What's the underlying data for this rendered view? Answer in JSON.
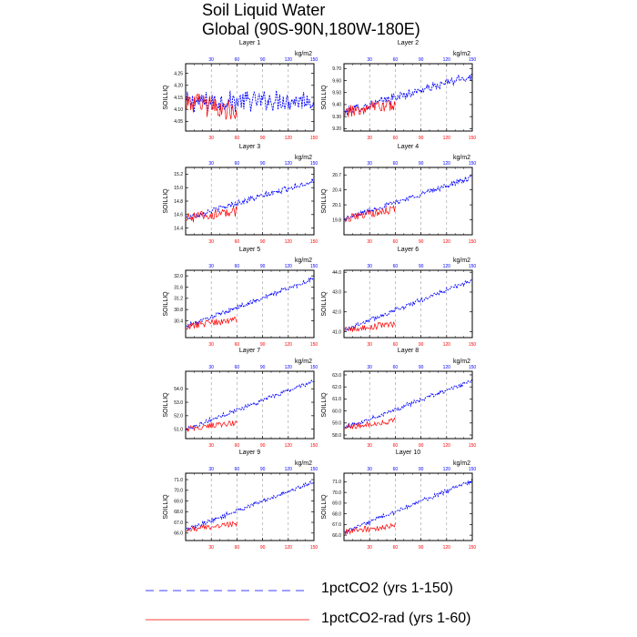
{
  "title": {
    "line1": "Soil Liquid Water",
    "line2": "Global (90S-90N,180W-180E)"
  },
  "chart_data": {
    "type": "line",
    "units": "kg/m2",
    "ylabel": "SOILLIQ",
    "x_bottom_ticks": [
      30,
      60,
      90,
      120,
      150
    ],
    "x_top_ticks": [
      30,
      60,
      90,
      120,
      150
    ],
    "xlim": [
      0,
      150
    ],
    "grid": "dashed vertical lines at x ticks",
    "colors": {
      "series_a": "#0000ff",
      "series_b": "#ff0000",
      "bottom_ticks": "#ff0000",
      "top_ticks": "#0000ff"
    },
    "series_names": [
      "1pctCO2 (yrs 1-150)",
      "1pctCO2-rad (yrs 1-60)"
    ],
    "panels": [
      {
        "title": "Layer 1",
        "ylim": [
          4.01,
          4.29
        ],
        "yticks": [
          "4.05",
          "4.10",
          "4.15",
          "4.20",
          "4.25"
        ],
        "a_start": 4.13,
        "a_end": 4.14,
        "a_noise": 0.045,
        "b_start": 4.13,
        "b_end": 4.09,
        "b_noise": 0.035
      },
      {
        "title": "Layer 2",
        "ylim": [
          9.18,
          9.74
        ],
        "yticks": [
          "9.20",
          "9.30",
          "9.40",
          "9.50",
          "9.60",
          "9.70"
        ],
        "a_start": 9.34,
        "a_end": 9.64,
        "a_noise": 0.04,
        "b_start": 9.34,
        "b_end": 9.4,
        "b_noise": 0.04
      },
      {
        "title": "Layer 3",
        "ylim": [
          14.3,
          15.3
        ],
        "yticks": [
          "14.4",
          "14.6",
          "14.8",
          "15.0",
          "15.2"
        ],
        "a_start": 14.55,
        "a_end": 15.1,
        "a_noise": 0.05,
        "b_start": 14.55,
        "b_end": 14.65,
        "b_noise": 0.06
      },
      {
        "title": "Layer 4",
        "ylim": [
          19.5,
          20.85
        ],
        "yticks": [
          "19.8",
          "20.1",
          "20.4",
          "20.7"
        ],
        "a_start": 19.82,
        "a_end": 20.65,
        "a_noise": 0.06,
        "b_start": 19.82,
        "b_end": 20.02,
        "b_noise": 0.06
      },
      {
        "title": "Layer 5",
        "ylim": [
          29.8,
          32.2
        ],
        "yticks": [
          "30.4",
          "30.8",
          "31.2",
          "31.6",
          "32.0"
        ],
        "a_start": 30.2,
        "a_end": 31.9,
        "a_noise": 0.09,
        "b_start": 30.2,
        "b_end": 30.45,
        "b_noise": 0.09
      },
      {
        "title": "Layer 6",
        "ylim": [
          40.7,
          44.1
        ],
        "yticks": [
          "41.0",
          "42.0",
          "43.0",
          "44.0"
        ],
        "a_start": 41.1,
        "a_end": 43.6,
        "a_noise": 0.13,
        "b_start": 41.1,
        "b_end": 41.4,
        "b_noise": 0.13
      },
      {
        "title": "Layer 7",
        "ylim": [
          50.3,
          55.3
        ],
        "yticks": [
          "51.0",
          "52.0",
          "53.0",
          "54.0"
        ],
        "a_start": 51.0,
        "a_end": 54.6,
        "a_noise": 0.18,
        "b_start": 51.0,
        "b_end": 51.5,
        "b_noise": 0.18
      },
      {
        "title": "Layer 8",
        "ylim": [
          57.7,
          63.3
        ],
        "yticks": [
          "58.0",
          "59.0",
          "60.0",
          "61.0",
          "62.0",
          "63.0"
        ],
        "a_start": 58.6,
        "a_end": 62.5,
        "a_noise": 0.2,
        "b_start": 58.6,
        "b_end": 59.2,
        "b_noise": 0.2
      },
      {
        "title": "Layer 9",
        "ylim": [
          65.3,
          71.6
        ],
        "yticks": [
          "66.0",
          "67.0",
          "68.0",
          "69.0",
          "70.0",
          "71.0"
        ],
        "a_start": 66.3,
        "a_end": 70.8,
        "a_noise": 0.22,
        "b_start": 66.3,
        "b_end": 66.9,
        "b_noise": 0.22
      },
      {
        "title": "Layer 10",
        "ylim": [
          65.5,
          71.8
        ],
        "yticks": [
          "66.0",
          "67.0",
          "68.0",
          "69.0",
          "70.0",
          "71.0"
        ],
        "a_start": 66.3,
        "a_end": 71.1,
        "a_noise": 0.22,
        "b_start": 66.3,
        "b_end": 66.9,
        "b_noise": 0.22
      }
    ]
  },
  "legend": [
    {
      "label": "1pctCO2 (yrs 1-150)",
      "color": "#0000ff",
      "style": "dashed"
    },
    {
      "label": "1pctCO2-rad (yrs 1-60)",
      "color": "#ff0000",
      "style": "solid"
    }
  ]
}
